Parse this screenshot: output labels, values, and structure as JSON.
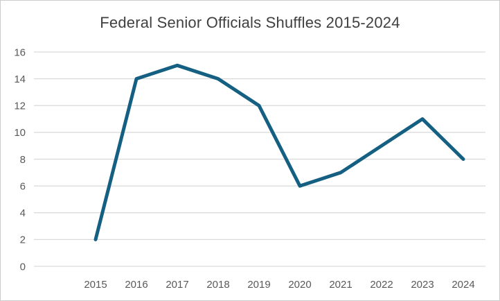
{
  "chart_data": {
    "type": "line",
    "title": "Federal Senior Officials Shuffles 2015-2024",
    "categories": [
      "2015",
      "2016",
      "2017",
      "2018",
      "2019",
      "2020",
      "2021",
      "2022",
      "2023",
      "2024"
    ],
    "values": [
      2,
      14,
      15,
      14,
      12,
      6,
      7,
      9,
      11,
      8
    ],
    "xlabel": "",
    "ylabel": "",
    "ylim": [
      0,
      16
    ],
    "yticks": [
      0,
      2,
      4,
      6,
      8,
      10,
      12,
      14,
      16
    ],
    "grid": true,
    "legend_position": "none",
    "colors": {
      "line": "#156082",
      "gridline": "#D9D9D9",
      "tick_label": "#595959",
      "title": "#404040",
      "border": "#CCCCCC",
      "background": "#FFFFFF"
    }
  }
}
